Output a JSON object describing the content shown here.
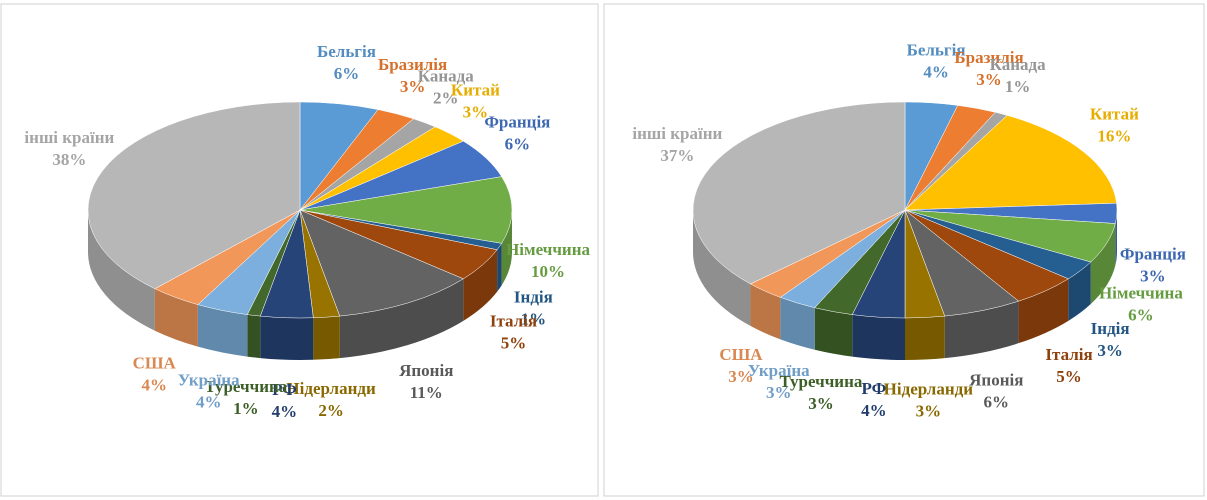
{
  "chart_data": [
    {
      "type": "pie",
      "categories": [
        "Бельгія",
        "Бразилія",
        "Канада",
        "Китай",
        "Франція",
        "Німеччина",
        "Індія",
        "Італія",
        "Японія",
        "Нідерланди",
        "РФ",
        "Туреччина",
        "Україна",
        "США",
        "інші країни"
      ],
      "values": [
        6,
        3,
        2,
        3,
        6,
        10,
        1,
        5,
        11,
        2,
        4,
        1,
        4,
        4,
        38
      ],
      "value_labels": [
        "6%",
        "3%",
        "2%",
        "3%",
        "6%",
        "10%",
        "1%",
        "5%",
        "11%",
        "2%",
        "4%",
        "1%",
        "4%",
        "4%",
        "38%"
      ],
      "colors": [
        "#5b9bd5",
        "#ed7d31",
        "#a5a5a5",
        "#ffc000",
        "#4472c4",
        "#70ad47",
        "#255e91",
        "#9e480e",
        "#636363",
        "#997300",
        "#264478",
        "#43682b",
        "#7cafdd",
        "#f1975a",
        "#b7b7b7"
      ]
    },
    {
      "type": "pie",
      "categories": [
        "Бельгія",
        "Бразилія",
        "Канада",
        "Китай",
        "Франція",
        "Німеччина",
        "Індія",
        "Італія",
        "Японія",
        "Нідерланди",
        "РФ",
        "Туреччина",
        "Україна",
        "США",
        "інші країни"
      ],
      "values": [
        4,
        3,
        1,
        16,
        3,
        6,
        3,
        5,
        6,
        3,
        4,
        3,
        3,
        3,
        37
      ],
      "value_labels": [
        "4%",
        "3%",
        "1%",
        "16%",
        "3%",
        "6%",
        "3%",
        "5%",
        "6%",
        "3%",
        "4%",
        "3%",
        "3%",
        "3%",
        "37%"
      ],
      "colors": [
        "#5b9bd5",
        "#ed7d31",
        "#a5a5a5",
        "#ffc000",
        "#4472c4",
        "#70ad47",
        "#255e91",
        "#9e480e",
        "#636363",
        "#997300",
        "#264478",
        "#43682b",
        "#7cafdd",
        "#f1975a",
        "#b7b7b7"
      ]
    }
  ]
}
